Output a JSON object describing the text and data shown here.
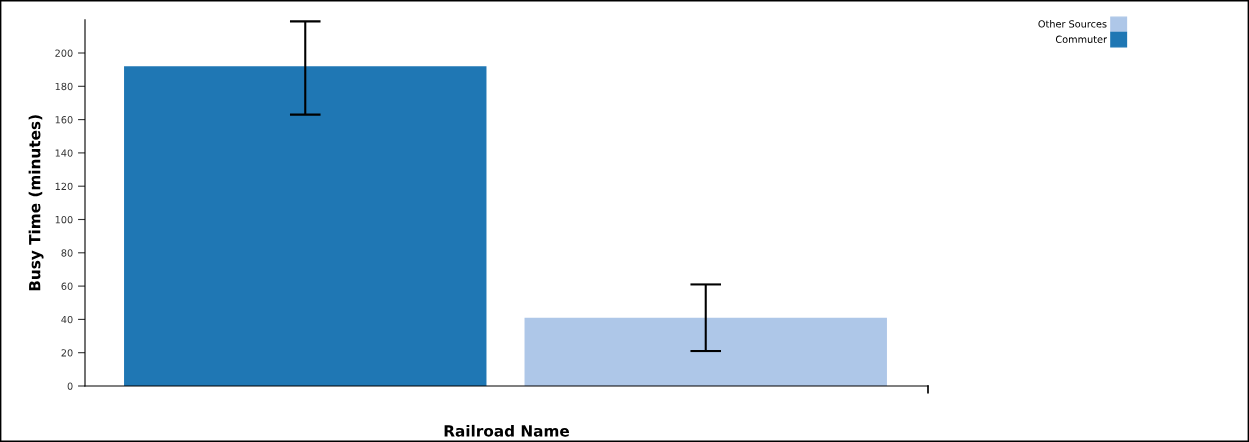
{
  "chart_data": {
    "type": "bar",
    "xlabel": "Railroad Name",
    "ylabel": "Busy Time (minutes)",
    "categories": [
      null,
      null
    ],
    "series": [
      {
        "name": "Commuter",
        "color": "#1f77b4",
        "values": [
          192,
          null
        ],
        "errors": [
          [
            163,
            219
          ],
          null
        ]
      },
      {
        "name": "Other Sources",
        "color": "#aec7e8",
        "values": [
          null,
          41
        ],
        "errors": [
          null,
          [
            21,
            61
          ]
        ]
      }
    ],
    "ylim": [
      0,
      220
    ],
    "yticks": [
      0,
      20,
      40,
      60,
      80,
      100,
      120,
      140,
      160,
      180,
      200
    ],
    "grid": false,
    "legend": "top right"
  }
}
